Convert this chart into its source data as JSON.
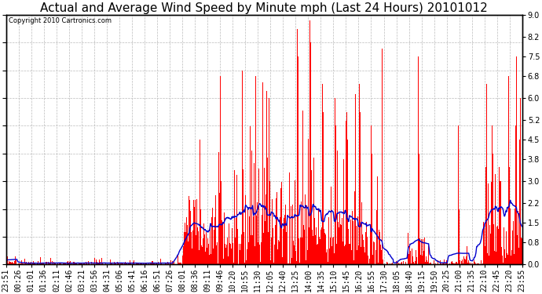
{
  "title": "Actual and Average Wind Speed by Minute mph (Last 24 Hours) 20101012",
  "copyright": "Copyright 2010 Cartronics.com",
  "yticks": [
    0.0,
    0.8,
    1.5,
    2.2,
    3.0,
    3.8,
    4.5,
    5.2,
    6.0,
    6.8,
    7.5,
    8.2,
    9.0
  ],
  "ymax": 9.0,
  "bar_color": "#FF0000",
  "line_color": "#0000CC",
  "bg_color": "#FFFFFF",
  "grid_color": "#BBBBBB",
  "title_fontsize": 11,
  "tick_fontsize": 7,
  "x_labels": [
    "23:51",
    "00:26",
    "01:01",
    "01:36",
    "02:11",
    "02:46",
    "03:21",
    "03:56",
    "04:31",
    "05:06",
    "05:41",
    "06:16",
    "06:51",
    "07:26",
    "08:01",
    "08:36",
    "09:11",
    "09:46",
    "10:20",
    "10:55",
    "11:30",
    "12:05",
    "12:40",
    "13:25",
    "14:00",
    "14:35",
    "15:10",
    "15:45",
    "16:20",
    "16:55",
    "17:30",
    "18:05",
    "18:40",
    "19:15",
    "19:50",
    "20:25",
    "21:00",
    "21:35",
    "22:10",
    "22:45",
    "23:20",
    "23:55"
  ]
}
